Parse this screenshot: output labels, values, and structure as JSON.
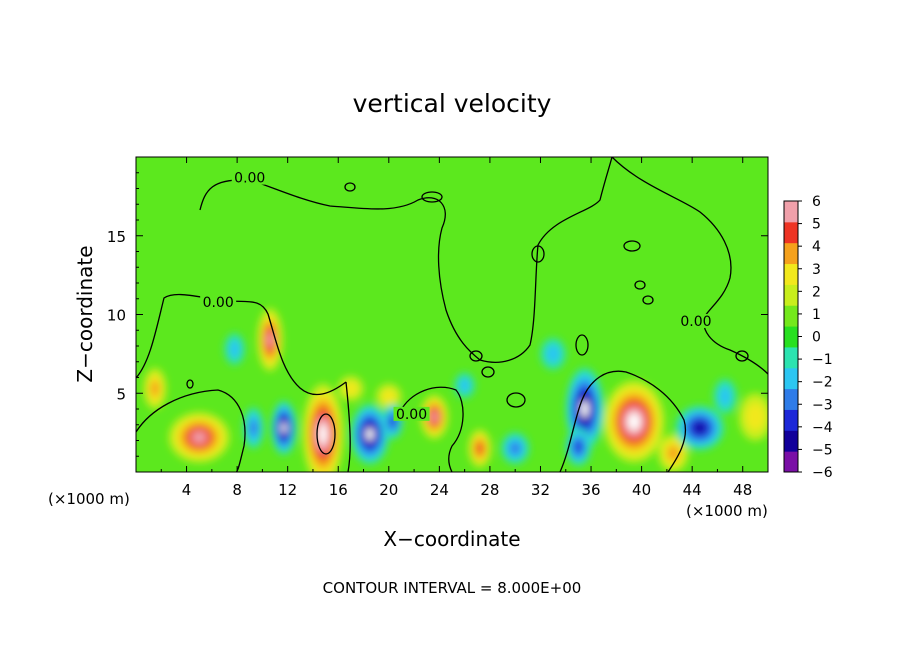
{
  "chart_data": {
    "type": "heatmap",
    "title": "vertical velocity",
    "xlabel": "X−coordinate",
    "ylabel": "Z−coordinate",
    "x_unit_left": "(×1000 m)",
    "x_unit_right": "(×1000 m)",
    "xlim": [
      0,
      50
    ],
    "ylim": [
      0,
      20
    ],
    "x_ticks": [
      4,
      8,
      12,
      16,
      20,
      24,
      28,
      32,
      36,
      40,
      44,
      48
    ],
    "y_ticks": [
      5,
      10,
      15
    ],
    "colorbar": {
      "min": -6,
      "max": 6,
      "ticks": [
        "6",
        "5",
        "4",
        "3",
        "2",
        "1",
        "0",
        "−1",
        "−2",
        "−3",
        "−4",
        "−5",
        "−6"
      ],
      "colors": [
        "#7a0fa6",
        "#12009a",
        "#1d28d8",
        "#2f7ce8",
        "#2cc6f2",
        "#2ce3b0",
        "#28e020",
        "#74e81c",
        "#c8ee1c",
        "#f2e81c",
        "#f5a11c",
        "#ee3424",
        "#f0a0aa"
      ]
    },
    "contour_labels": [
      {
        "text": "0.00",
        "x": 9.0,
        "z": 18.5
      },
      {
        "text": "0.00",
        "x": 6.5,
        "z": 10.6
      },
      {
        "text": "0.00",
        "x": 21.8,
        "z": 3.5
      },
      {
        "text": "0.00",
        "x": 44.3,
        "z": 9.4
      }
    ],
    "features": [
      {
        "sign": "up",
        "x": 5.0,
        "z": 2.2,
        "rx": 2.4,
        "rz": 1.6,
        "w": 4.6
      },
      {
        "sign": "up",
        "x": 1.5,
        "z": 5.3,
        "rx": 0.9,
        "rz": 1.3,
        "w": 3.2
      },
      {
        "sign": "up",
        "x": 10.6,
        "z": 8.4,
        "rx": 1.0,
        "rz": 2.0,
        "w": 5.0
      },
      {
        "sign": "up",
        "x": 14.8,
        "z": 2.4,
        "rx": 1.6,
        "rz": 3.2,
        "w": 7.2
      },
      {
        "sign": "up",
        "x": 23.6,
        "z": 3.5,
        "rx": 1.1,
        "rz": 1.4,
        "w": 4.5
      },
      {
        "sign": "up",
        "x": 27.2,
        "z": 1.5,
        "rx": 0.9,
        "rz": 1.2,
        "w": 4.2
      },
      {
        "sign": "up",
        "x": 39.4,
        "z": 3.2,
        "rx": 2.4,
        "rz": 2.6,
        "w": 6.5
      },
      {
        "sign": "up",
        "x": 42.5,
        "z": 1.2,
        "rx": 1.2,
        "rz": 1.2,
        "w": 2.5
      },
      {
        "sign": "up",
        "x": 49.0,
        "z": 3.5,
        "rx": 1.3,
        "rz": 1.5,
        "w": 2.0
      },
      {
        "sign": "up",
        "x": 17.0,
        "z": 5.3,
        "rx": 1.0,
        "rz": 0.8,
        "w": 1.8
      },
      {
        "sign": "up",
        "x": 20.0,
        "z": 4.8,
        "rx": 1.0,
        "rz": 0.8,
        "w": 1.5
      },
      {
        "sign": "down",
        "x": 11.7,
        "z": 2.8,
        "rx": 1.0,
        "rz": 1.7,
        "w": 5.6
      },
      {
        "sign": "down",
        "x": 9.3,
        "z": 2.8,
        "rx": 0.8,
        "rz": 1.3,
        "w": 2.8
      },
      {
        "sign": "down",
        "x": 18.5,
        "z": 2.4,
        "rx": 1.5,
        "rz": 1.9,
        "w": 6.0
      },
      {
        "sign": "down",
        "x": 20.3,
        "z": 3.2,
        "rx": 0.8,
        "rz": 1.1,
        "w": 3.6
      },
      {
        "sign": "down",
        "x": 7.8,
        "z": 7.8,
        "rx": 0.8,
        "rz": 1.0,
        "w": 2.3
      },
      {
        "sign": "down",
        "x": 35.5,
        "z": 4.0,
        "rx": 1.5,
        "rz": 2.6,
        "w": 6.2
      },
      {
        "sign": "down",
        "x": 35.0,
        "z": 1.6,
        "rx": 1.0,
        "rz": 1.2,
        "w": 3.5
      },
      {
        "sign": "down",
        "x": 44.6,
        "z": 2.8,
        "rx": 1.9,
        "rz": 1.4,
        "w": 5.0
      },
      {
        "sign": "down",
        "x": 30.0,
        "z": 1.5,
        "rx": 1.1,
        "rz": 1.0,
        "w": 2.5
      },
      {
        "sign": "down",
        "x": 26.0,
        "z": 5.5,
        "rx": 0.8,
        "rz": 0.8,
        "w": 1.6
      },
      {
        "sign": "down",
        "x": 46.6,
        "z": 4.8,
        "rx": 0.9,
        "rz": 1.1,
        "w": 1.8
      },
      {
        "sign": "down",
        "x": 33.0,
        "z": 7.5,
        "rx": 1.0,
        "rz": 1.0,
        "w": 1.6
      }
    ],
    "footer": "CONTOUR INTERVAL = 8.000E+00"
  }
}
